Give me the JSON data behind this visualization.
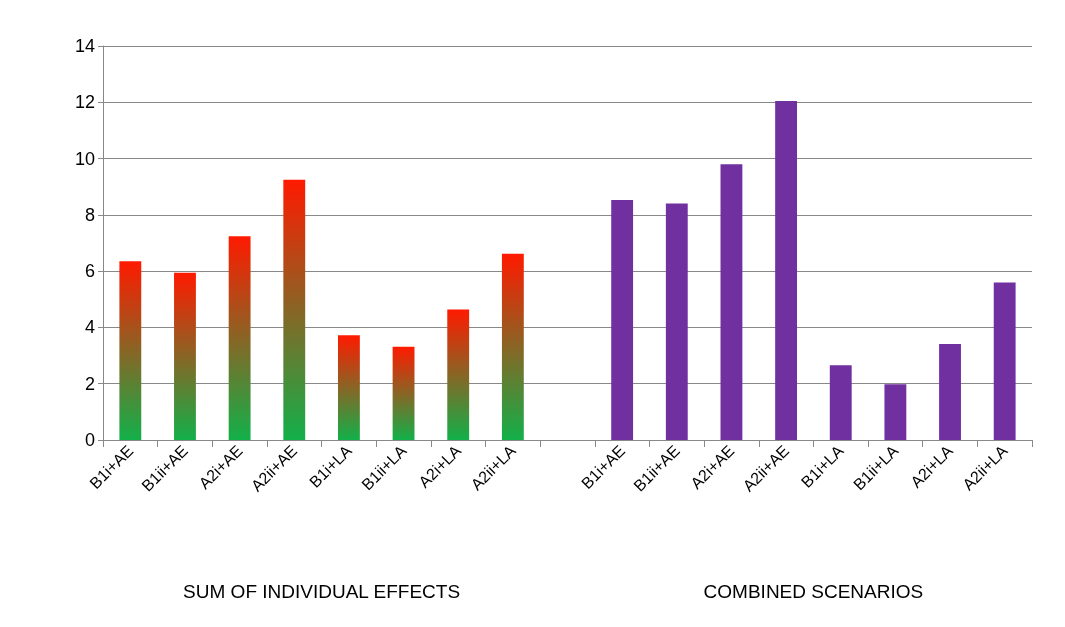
{
  "chart_data": {
    "type": "bar",
    "categories": [
      "B1i+AE",
      "B1ii+AE",
      "A2i+AE",
      "A2ii+AE",
      "B1i+LA",
      "B1ii+LA",
      "A2i+LA",
      "A2ii+LA",
      null,
      "B1i+AE",
      "B1ii+AE",
      "A2i+AE",
      "A2ii+AE",
      "B1i+LA",
      "B1ii+LA",
      "A2i+LA",
      "A2ii+LA"
    ],
    "series": [
      {
        "color": "#ff1a00",
        "values": [
          6.35,
          5.94,
          7.24,
          9.25,
          3.72,
          3.31,
          4.64,
          6.62,
          null,
          null,
          null,
          null,
          null,
          null,
          null,
          null,
          null
        ]
      },
      {
        "color": "#7030a0",
        "values": [
          null,
          null,
          null,
          null,
          null,
          null,
          null,
          null,
          null,
          8.53,
          8.4,
          9.8,
          12.05,
          2.66,
          1.98,
          3.41,
          5.6
        ]
      }
    ],
    "ylim": [
      0,
      14
    ],
    "yticks": [
      0,
      2,
      4,
      6,
      8,
      10,
      12,
      14
    ],
    "grid": "y",
    "annotations": [
      "SUM OF INDIVIDUAL EFFECTS",
      "COMBINED SCENARIOS"
    ]
  }
}
